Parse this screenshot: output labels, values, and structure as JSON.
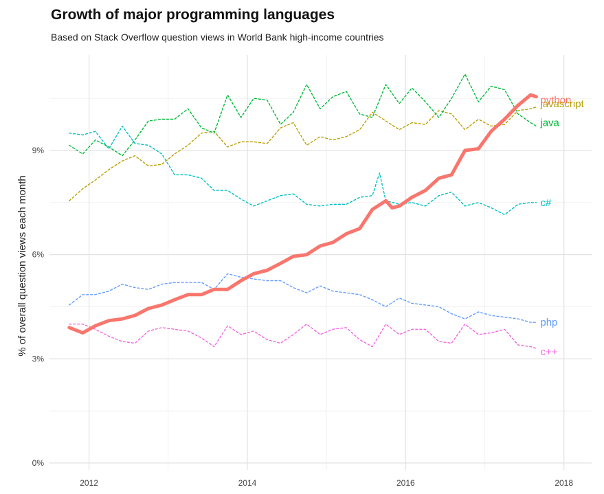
{
  "chart_data": {
    "type": "line",
    "title": "Growth of major programming languages",
    "subtitle": "Based on Stack Overflow question views in World Bank high-income countries",
    "ylabel": "% of overall question views each month",
    "xlabel": "",
    "xlim": [
      2011.5,
      2018.35
    ],
    "ylim": [
      -0.2,
      11.75
    ],
    "x_ticks": [
      2012,
      2014,
      2016,
      2018
    ],
    "x_tick_labels": [
      "2012",
      "2014",
      "2016",
      "2018"
    ],
    "y_ticks": [
      0,
      3,
      6,
      9
    ],
    "y_tick_labels": [
      "0%",
      "3%",
      "6%",
      "9%"
    ],
    "grid": true,
    "legend": "direct labels at right end of lines",
    "series": [
      {
        "name": "python",
        "color": "#F8766D",
        "style": "solid-thick",
        "x": [
          2011.75,
          2011.92,
          2012.08,
          2012.25,
          2012.42,
          2012.58,
          2012.75,
          2012.92,
          2013.08,
          2013.25,
          2013.42,
          2013.58,
          2013.75,
          2013.92,
          2014.08,
          2014.25,
          2014.42,
          2014.58,
          2014.75,
          2014.92,
          2015.08,
          2015.25,
          2015.42,
          2015.58,
          2015.75,
          2015.83,
          2015.92,
          2016.08,
          2016.25,
          2016.42,
          2016.58,
          2016.75,
          2016.92,
          2017.08,
          2017.25,
          2017.42,
          2017.58,
          2017.65
        ],
        "values": [
          3.9,
          3.75,
          3.95,
          4.1,
          4.15,
          4.25,
          4.45,
          4.55,
          4.7,
          4.85,
          4.85,
          5.0,
          5.0,
          5.25,
          5.45,
          5.55,
          5.75,
          5.95,
          6.0,
          6.25,
          6.35,
          6.6,
          6.75,
          7.3,
          7.55,
          7.35,
          7.4,
          7.65,
          7.85,
          8.2,
          8.3,
          9.0,
          9.05,
          9.55,
          9.9,
          10.3,
          10.6,
          10.55
        ]
      },
      {
        "name": "javascript",
        "color": "#B79F00",
        "style": "dashed",
        "x": [
          2011.75,
          2011.92,
          2012.08,
          2012.25,
          2012.42,
          2012.58,
          2012.75,
          2012.92,
          2013.08,
          2013.25,
          2013.42,
          2013.58,
          2013.75,
          2013.92,
          2014.08,
          2014.25,
          2014.42,
          2014.58,
          2014.75,
          2014.92,
          2015.08,
          2015.25,
          2015.42,
          2015.58,
          2015.75,
          2015.92,
          2016.08,
          2016.25,
          2016.42,
          2016.58,
          2016.75,
          2016.92,
          2017.08,
          2017.25,
          2017.42,
          2017.58,
          2017.65
        ],
        "values": [
          7.55,
          7.9,
          8.15,
          8.45,
          8.7,
          8.85,
          8.55,
          8.6,
          8.9,
          9.15,
          9.5,
          9.55,
          9.1,
          9.25,
          9.25,
          9.2,
          9.65,
          9.8,
          9.15,
          9.4,
          9.3,
          9.4,
          9.6,
          10.1,
          9.85,
          9.6,
          9.8,
          9.75,
          10.15,
          10.05,
          9.6,
          9.9,
          9.7,
          9.75,
          10.15,
          10.2,
          10.25
        ]
      },
      {
        "name": "java",
        "color": "#00BA38",
        "style": "dashed",
        "x": [
          2011.75,
          2011.92,
          2012.08,
          2012.25,
          2012.42,
          2012.58,
          2012.75,
          2012.92,
          2013.08,
          2013.25,
          2013.42,
          2013.58,
          2013.75,
          2013.92,
          2014.08,
          2014.25,
          2014.42,
          2014.58,
          2014.75,
          2014.92,
          2015.08,
          2015.25,
          2015.42,
          2015.58,
          2015.75,
          2015.92,
          2016.08,
          2016.25,
          2016.42,
          2016.58,
          2016.75,
          2016.92,
          2017.08,
          2017.25,
          2017.42,
          2017.58,
          2017.65
        ],
        "values": [
          9.15,
          8.9,
          9.3,
          9.1,
          8.85,
          9.3,
          9.85,
          9.9,
          9.9,
          10.2,
          9.65,
          9.5,
          10.6,
          9.95,
          10.5,
          10.45,
          9.75,
          10.1,
          10.9,
          10.2,
          10.55,
          10.7,
          10.05,
          9.95,
          10.9,
          10.35,
          10.8,
          10.4,
          9.95,
          10.5,
          11.2,
          10.4,
          10.85,
          10.75,
          10.05,
          9.8,
          9.7
        ]
      },
      {
        "name": "c#",
        "color": "#00BFC4",
        "style": "dashed",
        "x": [
          2011.75,
          2011.92,
          2012.08,
          2012.25,
          2012.42,
          2012.58,
          2012.75,
          2012.92,
          2013.08,
          2013.25,
          2013.42,
          2013.58,
          2013.75,
          2013.92,
          2014.08,
          2014.25,
          2014.42,
          2014.58,
          2014.75,
          2014.92,
          2015.08,
          2015.25,
          2015.42,
          2015.58,
          2015.67,
          2015.75,
          2015.92,
          2016.08,
          2016.25,
          2016.42,
          2016.58,
          2016.75,
          2016.92,
          2017.08,
          2017.25,
          2017.42,
          2017.58,
          2017.65
        ],
        "values": [
          9.5,
          9.45,
          9.55,
          9.05,
          9.7,
          9.2,
          9.15,
          8.9,
          8.3,
          8.3,
          8.2,
          7.85,
          7.85,
          7.6,
          7.4,
          7.55,
          7.7,
          7.75,
          7.45,
          7.4,
          7.45,
          7.45,
          7.65,
          7.7,
          8.35,
          7.55,
          7.45,
          7.5,
          7.4,
          7.7,
          7.8,
          7.4,
          7.5,
          7.35,
          7.15,
          7.45,
          7.5,
          7.5
        ]
      },
      {
        "name": "php",
        "color": "#619CFF",
        "style": "dashed",
        "x": [
          2011.75,
          2011.92,
          2012.08,
          2012.25,
          2012.42,
          2012.58,
          2012.75,
          2012.92,
          2013.08,
          2013.25,
          2013.42,
          2013.58,
          2013.75,
          2013.92,
          2014.08,
          2014.25,
          2014.42,
          2014.58,
          2014.75,
          2014.92,
          2015.08,
          2015.25,
          2015.42,
          2015.58,
          2015.75,
          2015.92,
          2016.08,
          2016.25,
          2016.42,
          2016.58,
          2016.75,
          2016.92,
          2017.08,
          2017.25,
          2017.42,
          2017.58,
          2017.65
        ],
        "values": [
          4.55,
          4.85,
          4.85,
          4.95,
          5.15,
          5.05,
          5.0,
          5.15,
          5.2,
          5.2,
          5.2,
          5.0,
          5.45,
          5.35,
          5.3,
          5.25,
          5.25,
          5.05,
          4.9,
          5.1,
          4.95,
          4.9,
          4.85,
          4.7,
          4.5,
          4.75,
          4.6,
          4.55,
          4.5,
          4.3,
          4.15,
          4.35,
          4.25,
          4.2,
          4.15,
          4.05,
          4.05
        ]
      },
      {
        "name": "c++",
        "color": "#F564E3",
        "style": "dashed",
        "x": [
          2011.75,
          2011.92,
          2012.08,
          2012.25,
          2012.42,
          2012.58,
          2012.75,
          2012.92,
          2013.08,
          2013.25,
          2013.42,
          2013.58,
          2013.75,
          2013.92,
          2014.08,
          2014.25,
          2014.42,
          2014.58,
          2014.75,
          2014.92,
          2015.08,
          2015.25,
          2015.42,
          2015.58,
          2015.75,
          2015.92,
          2016.08,
          2016.25,
          2016.42,
          2016.58,
          2016.75,
          2016.92,
          2017.08,
          2017.25,
          2017.42,
          2017.58,
          2017.65
        ],
        "values": [
          4.0,
          4.0,
          3.85,
          3.65,
          3.5,
          3.45,
          3.8,
          3.9,
          3.85,
          3.8,
          3.6,
          3.35,
          3.95,
          3.7,
          3.8,
          3.55,
          3.45,
          3.7,
          4.0,
          3.7,
          3.85,
          3.9,
          3.55,
          3.35,
          4.0,
          3.7,
          3.85,
          3.85,
          3.5,
          3.45,
          4.0,
          3.7,
          3.75,
          3.85,
          3.4,
          3.35,
          3.3
        ]
      }
    ]
  }
}
